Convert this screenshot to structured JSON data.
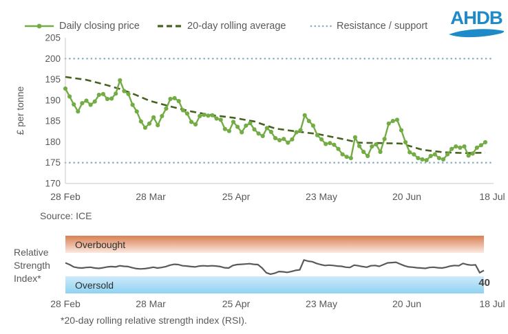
{
  "legend": {
    "items": [
      {
        "label": "Daily closing price",
        "style": "line-with-marker",
        "color": "#73ac44"
      },
      {
        "label": "20-day rolling average",
        "style": "dashed",
        "color": "#45621f"
      },
      {
        "label": "Resistance / support",
        "style": "dotted",
        "color": "#8fb1c5"
      }
    ]
  },
  "logo": {
    "text": "AHDB",
    "color": "#1e8ac8"
  },
  "source_note": "Source: ICE",
  "footnote": "*20-day rolling relative strength index (RSI).",
  "rsi_panel": {
    "axis_label_lines": [
      "Relative",
      "Strength",
      "Index*"
    ],
    "overbought_label": "Overbought",
    "oversold_label": "Oversold",
    "last_value_label": "40",
    "overbought_gradient": [
      "#d97f53",
      "#fbe9e0"
    ],
    "oversold_gradient": [
      "#cfeafa",
      "#8fd2f2"
    ]
  },
  "colors": {
    "price_line": "#73ac44",
    "rolling_average": "#45621f",
    "resistance_support": "#8fb1c5",
    "rsi_line": "#595959",
    "axis": "#c9c9c9",
    "text": "#595959",
    "logo_blue": "#1e8ac8"
  },
  "chart_data": [
    {
      "type": "line",
      "title": "",
      "ylabel": "£ per tonne",
      "ylim": [
        170,
        205
      ],
      "yticks": [
        170,
        175,
        180,
        185,
        190,
        195,
        200,
        205
      ],
      "x_tick_labels": [
        "28 Feb",
        "28 Mar",
        "25 Apr",
        "23 May",
        "20 Jun",
        "18 Jul"
      ],
      "resistance_level": 200,
      "support_level": 175,
      "grid": false,
      "legend_position": "top",
      "series": [
        {
          "name": "Daily closing price",
          "values": [
            192.8,
            190.9,
            189.0,
            187.3,
            189.3,
            189.9,
            188.9,
            189.7,
            191.3,
            191.5,
            190.3,
            190.4,
            191.6,
            194.8,
            192.2,
            191.5,
            188.9,
            187.3,
            184.9,
            183.4,
            184.4,
            185.9,
            184.0,
            186.2,
            188.0,
            190.3,
            190.5,
            189.8,
            187.6,
            186.8,
            184.8,
            184.2,
            186.2,
            186.5,
            186.3,
            186.4,
            185.6,
            185.3,
            183.1,
            182.6,
            184.8,
            183.6,
            182.3,
            183.9,
            184.5,
            183.0,
            182.0,
            181.4,
            183.3,
            182.4,
            180.9,
            180.4,
            180.7,
            179.8,
            180.6,
            182.3,
            182.8,
            186.4,
            185.0,
            183.9,
            181.6,
            180.6,
            179.5,
            179.7,
            179.3,
            178.3,
            177.0,
            176.4,
            176.1,
            181.1,
            179.0,
            177.6,
            176.6,
            178.9,
            179.4,
            177.6,
            180.7,
            184.4,
            185.0,
            185.3,
            182.8,
            179.9,
            177.5,
            177.0,
            176.1,
            175.8,
            175.6,
            176.6,
            177.0,
            176.1,
            175.8,
            177.0,
            178.3,
            178.9,
            178.6,
            178.9,
            176.7,
            177.2,
            178.6,
            179.2,
            179.9
          ]
        },
        {
          "name": "20-day rolling average",
          "anchor_days": [
            0,
            5,
            10,
            13,
            16,
            20,
            25,
            30,
            35,
            40,
            45,
            50,
            55,
            60,
            65,
            70,
            75,
            80,
            85,
            90,
            95,
            100
          ],
          "anchor_values": [
            195.6,
            194.9,
            193.6,
            192.7,
            191.6,
            189.9,
            188.5,
            187.3,
            186.4,
            185.8,
            184.9,
            183.2,
            182.5,
            181.9,
            180.9,
            179.8,
            179.7,
            179.6,
            178.1,
            177.5,
            177.3,
            177.4
          ]
        }
      ],
      "source": "Source: ICE"
    },
    {
      "type": "line",
      "name": "Relative Strength Index (20-day rolling RSI)",
      "ylim": [
        0,
        100
      ],
      "overbought_threshold": 70,
      "oversold_threshold": 30,
      "x_tick_labels": [
        "28 Feb",
        "28 Mar",
        "25 Apr",
        "23 May",
        "20 Jun",
        "18 Jul"
      ],
      "last_value": 40,
      "values": [
        53,
        50,
        46,
        44.5,
        44,
        45,
        45.5,
        44,
        43.5,
        44.5,
        46,
        46.5,
        46,
        48,
        47,
        46.5,
        44.5,
        43,
        42.5,
        43,
        44,
        45.5,
        44,
        45,
        46.5,
        49,
        50.5,
        50,
        48,
        47.5,
        46.5,
        46,
        47.5,
        48,
        47.5,
        48,
        47.5,
        46.5,
        44.5,
        44,
        48.5,
        50,
        50.5,
        51,
        51.5,
        50.5,
        50,
        44,
        36,
        33.5,
        35,
        38,
        37.5,
        36.5,
        38,
        40,
        41,
        58,
        56,
        55,
        52,
        50,
        48.5,
        49,
        48.5,
        47.5,
        47,
        45.5,
        45,
        49,
        48,
        46.5,
        45.5,
        48,
        48.5,
        47,
        50,
        53,
        53.5,
        54,
        51,
        48,
        46,
        45.5,
        44.5,
        44,
        43.5,
        45,
        45.5,
        44.5,
        44,
        45.5,
        47.5,
        48.5,
        48,
        52,
        50,
        49,
        49.5,
        36,
        40
      ]
    }
  ]
}
